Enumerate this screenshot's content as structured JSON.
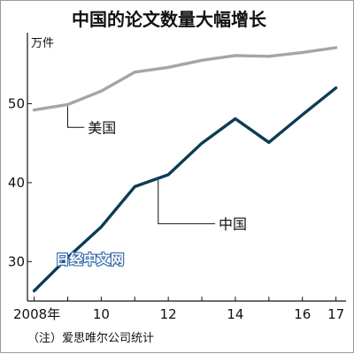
{
  "chart_data": {
    "type": "line",
    "title": "中国的论文数量大幅增长",
    "unit": "万件",
    "x_ticks": [
      "2008年",
      "10",
      "12",
      "14",
      "16",
      "17"
    ],
    "y_ticks": [
      "30",
      "40",
      "50"
    ],
    "x": [
      2008,
      2009,
      2010,
      2011,
      2012,
      2013,
      2014,
      2015,
      2016,
      2017
    ],
    "ylim": [
      25,
      59
    ],
    "xlim": [
      2007.8,
      2017.3
    ],
    "series": [
      {
        "name": "美国",
        "color": "#a5a5a5",
        "values": [
          49.2,
          49.9,
          51.6,
          54.0,
          54.6,
          55.5,
          56.1,
          56.0,
          56.5,
          57.1
        ]
      },
      {
        "name": "中国",
        "color": "#0b3c55",
        "values": [
          26.3,
          30.5,
          34.4,
          39.5,
          41.0,
          45.0,
          48.1,
          45.1,
          48.6,
          52.0
        ]
      }
    ],
    "note": "（注）爱思唯尔公司统计",
    "watermark": "日经中文网",
    "grid": false,
    "legend": "inline-callouts"
  }
}
